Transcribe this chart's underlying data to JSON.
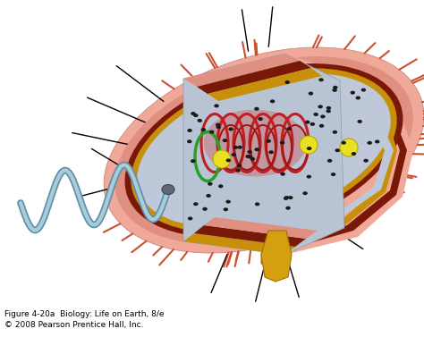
{
  "background_color": "#ffffff",
  "caption_line1": "Figure 4-20a  Biology: Life on Earth, 8/e",
  "caption_line2": "© 2008 Pearson Prentice Hall, Inc.",
  "caption_fontsize": 6.5,
  "outer_capsule_color": "#eca898",
  "cell_wall_color": "#d07060",
  "inner_wall_dark": "#8b1a0a",
  "membrane_gold": "#c8900a",
  "cytoplasm_color": "#c0c8dc",
  "nucleoid_color": "#c02828",
  "plasmid_color": "#28a028",
  "inclusion_color": "#e8e020",
  "ribosome_color": "#1a1a1a",
  "flagellum_color": "#90bcd0",
  "pili_color": "#cc5030",
  "pointer_color": "#000000",
  "pointer_lw": 1.0
}
